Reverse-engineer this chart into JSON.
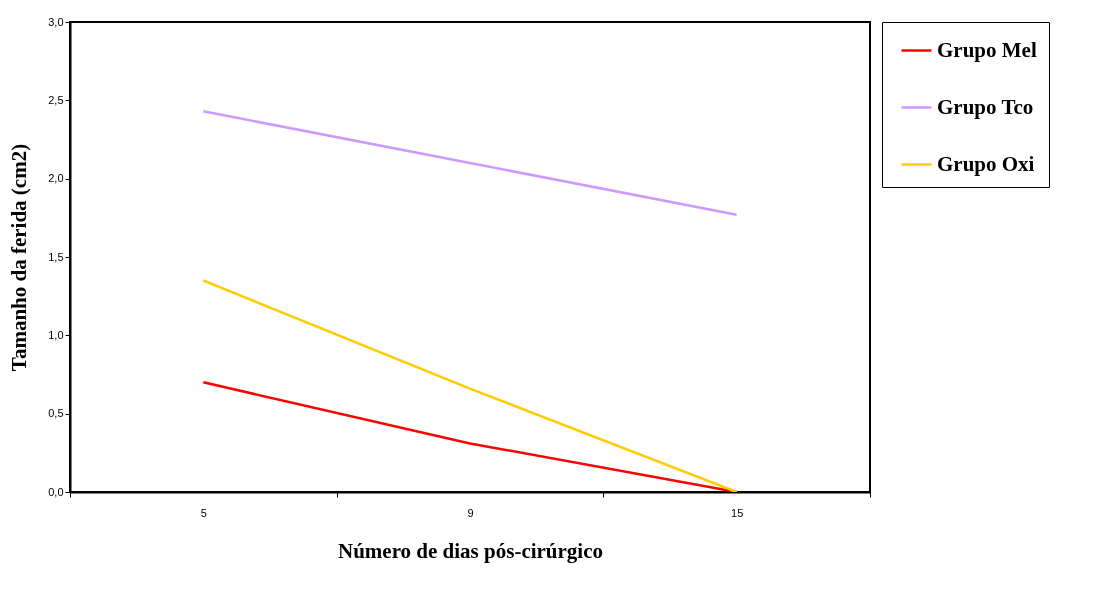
{
  "chart_data": {
    "type": "line",
    "xlabel": "Número de dias pós-cirúrgico",
    "ylabel": "Tamanho da ferida (cm2)",
    "categories": [
      "5",
      "9",
      "15"
    ],
    "series": [
      {
        "name": "Grupo Mel",
        "color": "#ff0000",
        "values": [
          0.7,
          0.31,
          0
        ]
      },
      {
        "name": "Grupo Tco",
        "color": "#cc99ff",
        "values": [
          2.43,
          2.1,
          1.77
        ]
      },
      {
        "name": "Grupo Oxi",
        "color": "#ffcc00",
        "values": [
          1.35,
          0.66,
          0
        ]
      }
    ],
    "ylim": [
      0,
      3
    ],
    "yticks": [
      {
        "value": 0,
        "label": "0,0"
      },
      {
        "value": 0.5,
        "label": "0,5"
      },
      {
        "value": 1,
        "label": "1,0"
      },
      {
        "value": 1.5,
        "label": "1,5"
      },
      {
        "value": 2,
        "label": "2,0"
      },
      {
        "value": 2.5,
        "label": "2,5"
      },
      {
        "value": 3,
        "label": "3,0"
      }
    ],
    "grid": false,
    "legend": "right",
    "marker": "none",
    "line_style": "solid"
  }
}
